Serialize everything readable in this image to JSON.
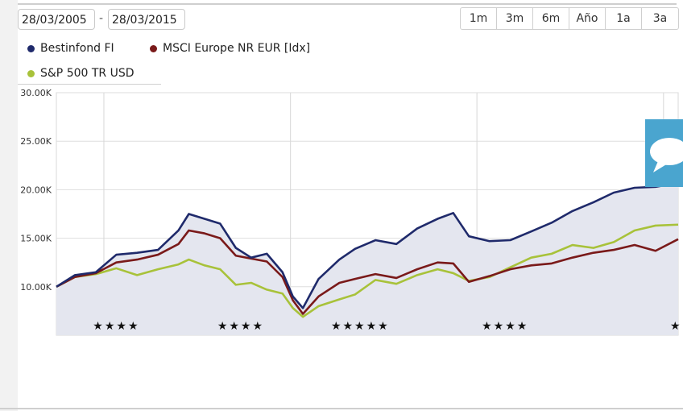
{
  "date_range": {
    "start": "28/03/2005",
    "separator": "-",
    "end": "28/03/2015"
  },
  "range_buttons": [
    "1m",
    "3m",
    "6m",
    "Año",
    "1a",
    "3a"
  ],
  "legend": [
    {
      "label": "Bestinfond FI",
      "color": "#1f2a6b"
    },
    {
      "label": "MSCI Europe NR EUR [Idx]",
      "color": "#7a1a1a"
    },
    {
      "label": "S&P 500 TR USD",
      "color": "#a8c23a"
    }
  ],
  "chat_widget": {
    "icon": "chat-bubble-icon"
  },
  "chart_data": {
    "type": "line",
    "x_start": "2005-03-28",
    "x_end": "2015-03-28",
    "ylim": [
      5000,
      30000
    ],
    "yticks": [
      10000,
      15000,
      20000,
      25000,
      30000
    ],
    "ytick_labels": [
      "10.00K",
      "15.00K",
      "20.00K",
      "25.00K",
      "30.00K"
    ],
    "grid": true,
    "legend_position": "top-left",
    "area_fill_series": "Bestinfond FI",
    "series": [
      {
        "name": "Bestinfond FI",
        "color": "#1f2a6b",
        "x": [
          "2005-03-28",
          "2005-07",
          "2005-11",
          "2006-03",
          "2006-07",
          "2006-11",
          "2007-03",
          "2007-05",
          "2007-08",
          "2007-11",
          "2008-02",
          "2008-05",
          "2008-08",
          "2008-11",
          "2009-01",
          "2009-03",
          "2009-06",
          "2009-10",
          "2010-01",
          "2010-05",
          "2010-09",
          "2011-01",
          "2011-05",
          "2011-08",
          "2011-11",
          "2012-03",
          "2012-07",
          "2012-11",
          "2013-03",
          "2013-07",
          "2013-11",
          "2014-03",
          "2014-07",
          "2014-11",
          "2015-03-28"
        ],
        "y": [
          10000,
          11200,
          11500,
          13300,
          13500,
          13800,
          15800,
          17500,
          17000,
          16500,
          14000,
          13000,
          13400,
          11500,
          9000,
          7800,
          10800,
          12800,
          13900,
          14800,
          14400,
          16000,
          17000,
          17600,
          15200,
          14700,
          14800,
          15700,
          16600,
          17800,
          18700,
          19700,
          20200,
          20300,
          20700
        ]
      },
      {
        "name": "MSCI Europe NR EUR [Idx]",
        "color": "#7a1a1a",
        "x": [
          "2005-03-28",
          "2005-07",
          "2005-11",
          "2006-03",
          "2006-07",
          "2006-11",
          "2007-03",
          "2007-05",
          "2007-08",
          "2007-11",
          "2008-02",
          "2008-05",
          "2008-08",
          "2008-11",
          "2009-01",
          "2009-03",
          "2009-06",
          "2009-10",
          "2010-01",
          "2010-05",
          "2010-09",
          "2011-01",
          "2011-05",
          "2011-08",
          "2011-11",
          "2012-03",
          "2012-07",
          "2012-11",
          "2013-03",
          "2013-07",
          "2013-11",
          "2014-03",
          "2014-07",
          "2014-11",
          "2015-03-28"
        ],
        "y": [
          10000,
          11000,
          11400,
          12500,
          12800,
          13300,
          14400,
          15800,
          15500,
          15000,
          13200,
          12900,
          12600,
          11000,
          8600,
          7200,
          9000,
          10400,
          10800,
          11300,
          10900,
          11800,
          12500,
          12400,
          10500,
          11100,
          11800,
          12200,
          12400,
          13000,
          13500,
          13800,
          14300,
          13700,
          14900
        ]
      },
      {
        "name": "S&P 500 TR USD",
        "color": "#a8c23a",
        "x": [
          "2005-03-28",
          "2005-07",
          "2005-11",
          "2006-03",
          "2006-07",
          "2006-11",
          "2007-03",
          "2007-05",
          "2007-08",
          "2007-11",
          "2008-02",
          "2008-05",
          "2008-08",
          "2008-11",
          "2009-01",
          "2009-03",
          "2009-06",
          "2009-10",
          "2010-01",
          "2010-05",
          "2010-09",
          "2011-01",
          "2011-05",
          "2011-08",
          "2011-11",
          "2012-03",
          "2012-07",
          "2012-11",
          "2013-03",
          "2013-07",
          "2013-11",
          "2014-03",
          "2014-07",
          "2014-11",
          "2015-03-28"
        ],
        "y": [
          10000,
          11000,
          11300,
          11900,
          11200,
          11800,
          12300,
          12800,
          12200,
          11800,
          10200,
          10400,
          9700,
          9300,
          7800,
          6900,
          8000,
          8700,
          9200,
          10700,
          10300,
          11200,
          11800,
          11400,
          10600,
          11000,
          12000,
          13000,
          13400,
          14300,
          14000,
          14600,
          15800,
          16300,
          16400
        ]
      }
    ],
    "ratings": [
      {
        "x": "2006-03",
        "stars": 4
      },
      {
        "x": "2008-03",
        "stars": 4
      },
      {
        "x": "2010-02",
        "stars": 5
      },
      {
        "x": "2012-06",
        "stars": 4
      },
      {
        "x": "2015-03",
        "stars": 1
      }
    ],
    "rating_symbol": "★"
  }
}
